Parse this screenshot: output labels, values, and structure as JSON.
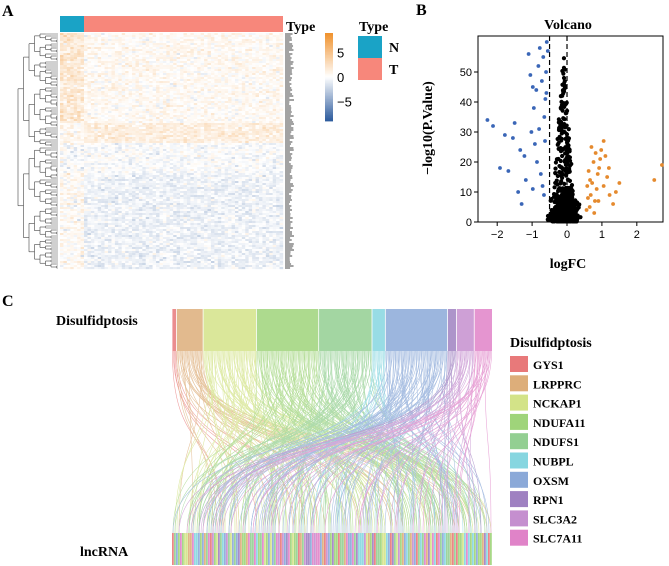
{
  "panels": {
    "a": "A",
    "b": "B",
    "c": "C"
  },
  "chart_data": [
    {
      "type": "heatmap",
      "panel": "A",
      "annotation": {
        "title": "Type",
        "groups": [
          {
            "name": "N",
            "color": "#1aa3c6",
            "samples": 7
          },
          {
            "name": "T",
            "color": "#f7877b",
            "samples": 58
          }
        ]
      },
      "colorbar": {
        "ticks": [
          5,
          0,
          -5
        ],
        "range": [
          -9,
          9
        ],
        "low_color": "#2f5d9e",
        "mid_color": "#ffffff",
        "high_color": "#f0932f"
      },
      "legend": {
        "title": "Type",
        "items": [
          {
            "label": "N",
            "color": "#1aa3c6"
          },
          {
            "label": "T",
            "color": "#f7877b"
          }
        ]
      }
    },
    {
      "type": "scatter",
      "panel": "B",
      "title": "Volcano",
      "xlabel": "logFC",
      "ylabel": "−log10(P.Value)",
      "xlim": [
        -2.55,
        2.75
      ],
      "ylim": [
        0,
        62
      ],
      "xticks": [
        -2,
        -1,
        0,
        1,
        2
      ],
      "yticks": [
        0,
        10,
        20,
        30,
        40,
        50
      ],
      "cutoff_lines_x": [
        -0.5,
        0
      ],
      "series": [
        {
          "name": "down",
          "color": "#3a66b7",
          "points": [
            [
              -2.28,
              34
            ],
            [
              -2.12,
              32
            ],
            [
              -1.78,
              29
            ],
            [
              -1.55,
              28
            ],
            [
              -1.92,
              18
            ],
            [
              -1.68,
              17
            ],
            [
              -1.34,
              24
            ],
            [
              -1.22,
              22
            ],
            [
              -1.1,
              56
            ],
            [
              -1.05,
              49
            ],
            [
              -0.98,
              45
            ],
            [
              -0.95,
              38
            ],
            [
              -0.88,
              44
            ],
            [
              -0.82,
              52
            ],
            [
              -0.78,
              58
            ],
            [
              -0.72,
              47
            ],
            [
              -0.68,
              55
            ],
            [
              -0.65,
              35
            ],
            [
              -0.62,
              41
            ],
            [
              -0.92,
              26
            ],
            [
              -1.02,
              30
            ],
            [
              -0.86,
              20
            ],
            [
              -0.75,
              16
            ],
            [
              -0.7,
              12
            ],
            [
              -0.66,
              9
            ],
            [
              -0.63,
              27
            ],
            [
              -1.18,
              14
            ],
            [
              -0.98,
              11
            ],
            [
              -1.4,
              10
            ],
            [
              -0.8,
              31
            ],
            [
              -0.6,
              50
            ],
            [
              -0.58,
              60
            ],
            [
              -0.55,
              57
            ],
            [
              -0.59,
              43
            ],
            [
              -1.5,
              33
            ],
            [
              -1.3,
              6
            ]
          ]
        },
        {
          "name": "up",
          "color": "#e58a2e",
          "points": [
            [
              2.72,
              19
            ],
            [
              2.5,
              14
            ],
            [
              1.5,
              13
            ],
            [
              1.32,
              6
            ],
            [
              1.22,
              9
            ],
            [
              1.15,
              15
            ],
            [
              1.1,
              22
            ],
            [
              1.05,
              27
            ],
            [
              0.98,
              24
            ],
            [
              0.92,
              18
            ],
            [
              0.88,
              16
            ],
            [
              0.85,
              11
            ],
            [
              0.8,
              7
            ],
            [
              0.76,
              20
            ],
            [
              0.72,
              13
            ],
            [
              0.68,
              9
            ],
            [
              0.65,
              5
            ],
            [
              0.62,
              17
            ],
            [
              0.6,
              8
            ],
            [
              0.58,
              12
            ],
            [
              0.56,
              4
            ],
            [
              0.95,
              21
            ],
            [
              0.7,
              25
            ],
            [
              1.2,
              18
            ],
            [
              1.4,
              10
            ],
            [
              0.9,
              7
            ],
            [
              0.78,
              3
            ],
            [
              1.05,
              12
            ],
            [
              0.66,
              14
            ],
            [
              0.82,
              23
            ]
          ]
        },
        {
          "name": "nonsignificant",
          "color": "#000000",
          "points": []
        }
      ]
    },
    {
      "type": "alluvial",
      "panel": "C",
      "left_axis_label": "Disulfidptosis",
      "bottom_axis_label": "lncRNA",
      "legend_title": "Disulfidptosis",
      "categories": [
        {
          "name": "GYS1",
          "color": "#e8797a",
          "weight": 1
        },
        {
          "name": "LRPPRC",
          "color": "#ddae7a",
          "weight": 6
        },
        {
          "name": "NCKAP1",
          "color": "#d3e388",
          "weight": 12
        },
        {
          "name": "NDUFA11",
          "color": "#9fd47a",
          "weight": 14
        },
        {
          "name": "NDUFS1",
          "color": "#93cf92",
          "weight": 12
        },
        {
          "name": "NUBPL",
          "color": "#86d6e0",
          "weight": 3
        },
        {
          "name": "OXSM",
          "color": "#8ba9d8",
          "weight": 14
        },
        {
          "name": "RPN1",
          "color": "#9f81c1",
          "weight": 2
        },
        {
          "name": "SLC3A2",
          "color": "#c58fcf",
          "weight": 4
        },
        {
          "name": "SLC7A11",
          "color": "#e083c8",
          "weight": 4
        }
      ]
    }
  ]
}
